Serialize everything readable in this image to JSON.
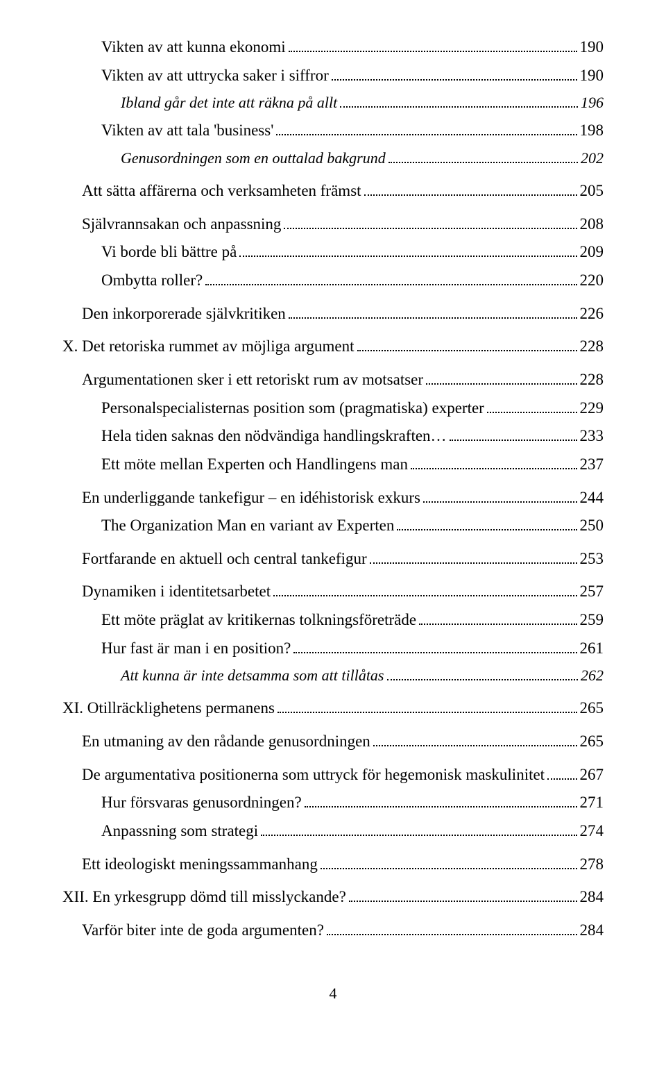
{
  "entries": [
    {
      "text": "Vikten av att kunna ekonomi",
      "page": "190",
      "level": 2,
      "italic": false,
      "gap": false
    },
    {
      "text": "Vikten av att uttrycka saker i siffror",
      "page": "190",
      "level": 2,
      "italic": false,
      "gap": false
    },
    {
      "text": "Ibland går det inte att räkna på allt",
      "page": "196",
      "level": 3,
      "italic": true,
      "gap": false
    },
    {
      "text": "Vikten av att tala 'business'",
      "page": "198",
      "level": 2,
      "italic": false,
      "gap": false
    },
    {
      "text": "Genusordningen som en outtalad bakgrund",
      "page": "202",
      "level": 3,
      "italic": true,
      "gap": false
    },
    {
      "text": "Att sätta affärerna och verksamheten främst",
      "page": "205",
      "level": 1,
      "italic": false,
      "gap": true
    },
    {
      "text": "Självrannsakan och anpassning",
      "page": "208",
      "level": 1,
      "italic": false,
      "gap": true
    },
    {
      "text": "Vi borde bli bättre på",
      "page": "209",
      "level": 2,
      "italic": false,
      "gap": false
    },
    {
      "text": "Ombytta roller?",
      "page": "220",
      "level": 2,
      "italic": false,
      "gap": false
    },
    {
      "text": "Den inkorporerade självkritiken",
      "page": "226",
      "level": 1,
      "italic": false,
      "gap": true
    },
    {
      "text": "X. Det retoriska rummet av möjliga argument",
      "page": "228",
      "level": 0,
      "italic": false,
      "gap": true
    },
    {
      "text": "Argumentationen sker i ett retoriskt rum av motsatser",
      "page": "228",
      "level": 1,
      "italic": false,
      "gap": true
    },
    {
      "text": "Personalspecialisternas position som (pragmatiska) experter",
      "page": "229",
      "level": 2,
      "italic": false,
      "gap": false
    },
    {
      "text": "Hela tiden saknas den nödvändiga handlingskraften…",
      "page": "233",
      "level": 2,
      "italic": false,
      "gap": false
    },
    {
      "text": "Ett möte mellan Experten och Handlingens man",
      "page": "237",
      "level": 2,
      "italic": false,
      "gap": false
    },
    {
      "text": "En underliggande tankefigur – en idéhistorisk exkurs",
      "page": "244",
      "level": 1,
      "italic": false,
      "gap": true
    },
    {
      "text": "The Organization Man en variant av Experten",
      "page": "250",
      "level": 2,
      "italic": false,
      "gap": false
    },
    {
      "text": "Fortfarande en aktuell och central tankefigur",
      "page": "253",
      "level": 1,
      "italic": false,
      "gap": true
    },
    {
      "text": "Dynamiken i identitetsarbetet",
      "page": "257",
      "level": 1,
      "italic": false,
      "gap": true
    },
    {
      "text": "Ett möte präglat av kritikernas tolkningsföreträde",
      "page": "259",
      "level": 2,
      "italic": false,
      "gap": false
    },
    {
      "text": "Hur fast är man i en position?",
      "page": "261",
      "level": 2,
      "italic": false,
      "gap": false
    },
    {
      "text": "Att kunna är inte detsamma som att tillåtas",
      "page": "262",
      "level": 3,
      "italic": true,
      "gap": false
    },
    {
      "text": "XI. Otillräcklighetens permanens",
      "page": "265",
      "level": 0,
      "italic": false,
      "gap": true
    },
    {
      "text": "En utmaning av den rådande genusordningen",
      "page": "265",
      "level": 1,
      "italic": false,
      "gap": true
    },
    {
      "text": "De argumentativa positionerna som uttryck för hegemonisk maskulinitet",
      "page": "267",
      "level": 1,
      "italic": false,
      "gap": true
    },
    {
      "text": "Hur försvaras genusordningen?",
      "page": "271",
      "level": 2,
      "italic": false,
      "gap": false
    },
    {
      "text": "Anpassning som strategi",
      "page": "274",
      "level": 2,
      "italic": false,
      "gap": false
    },
    {
      "text": "Ett ideologiskt meningssammanhang",
      "page": "278",
      "level": 1,
      "italic": false,
      "gap": true
    },
    {
      "text": "XII. En yrkesgrupp dömd till misslyckande?",
      "page": "284",
      "level": 0,
      "italic": false,
      "gap": true
    },
    {
      "text": "Varför biter inte de goda argumenten?",
      "page": "284",
      "level": 1,
      "italic": false,
      "gap": true
    }
  ],
  "pageNumber": "4"
}
